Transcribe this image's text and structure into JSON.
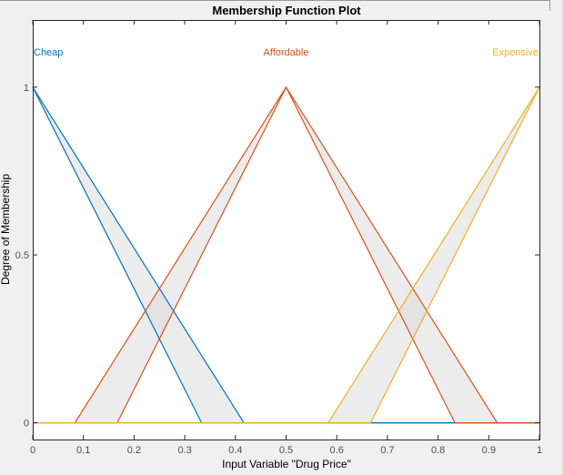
{
  "chart_data": {
    "type": "line",
    "title": "Membership Function Plot",
    "xlabel": "Input Variable \"Drug Price\"",
    "ylabel": "Degree of Membership",
    "xlim": [
      0,
      1
    ],
    "ylim": [
      -0.05,
      1.2
    ],
    "xticks": [
      "0",
      "0.1",
      "0.2",
      "0.3",
      "0.4",
      "0.5",
      "0.6",
      "0.7",
      "0.8",
      "0.9",
      "1"
    ],
    "yticks": [
      "0",
      "0.5",
      "1"
    ],
    "grid": false,
    "series": [
      {
        "name": "Cheap",
        "color": "#0072bd",
        "upper": [
          [
            0,
            1
          ],
          [
            0.4167,
            0
          ]
        ],
        "lower": [
          [
            0,
            1
          ],
          [
            0.3333,
            0
          ]
        ],
        "upper_full": [
          [
            0,
            1
          ],
          [
            0.4167,
            0
          ],
          [
            1,
            0
          ]
        ],
        "lower_full": [
          [
            0,
            1
          ],
          [
            0.3333,
            0
          ],
          [
            1,
            0
          ]
        ]
      },
      {
        "name": "Affordable",
        "color": "#d95319",
        "upper": [
          [
            0.0833,
            0
          ],
          [
            0.5,
            1
          ],
          [
            0.9167,
            0
          ]
        ],
        "lower": [
          [
            0.1667,
            0
          ],
          [
            0.5,
            1
          ],
          [
            0.8333,
            0
          ]
        ],
        "upper_full": [
          [
            0,
            0
          ],
          [
            0.0833,
            0
          ],
          [
            0.5,
            1
          ],
          [
            0.9167,
            0
          ],
          [
            1,
            0
          ]
        ],
        "lower_full": [
          [
            0,
            0
          ],
          [
            0.1667,
            0
          ],
          [
            0.5,
            1
          ],
          [
            0.8333,
            0
          ],
          [
            1,
            0
          ]
        ]
      },
      {
        "name": "Expensive",
        "color": "#edb120",
        "upper": [
          [
            0.5833,
            0
          ],
          [
            1,
            1
          ]
        ],
        "lower": [
          [
            0.6667,
            0
          ],
          [
            1,
            1
          ]
        ],
        "upper_full": [
          [
            0,
            0
          ],
          [
            0.5833,
            0
          ],
          [
            1,
            1
          ]
        ],
        "lower_full": [
          [
            0,
            0
          ],
          [
            0.6667,
            0
          ],
          [
            1,
            1
          ]
        ]
      }
    ]
  }
}
